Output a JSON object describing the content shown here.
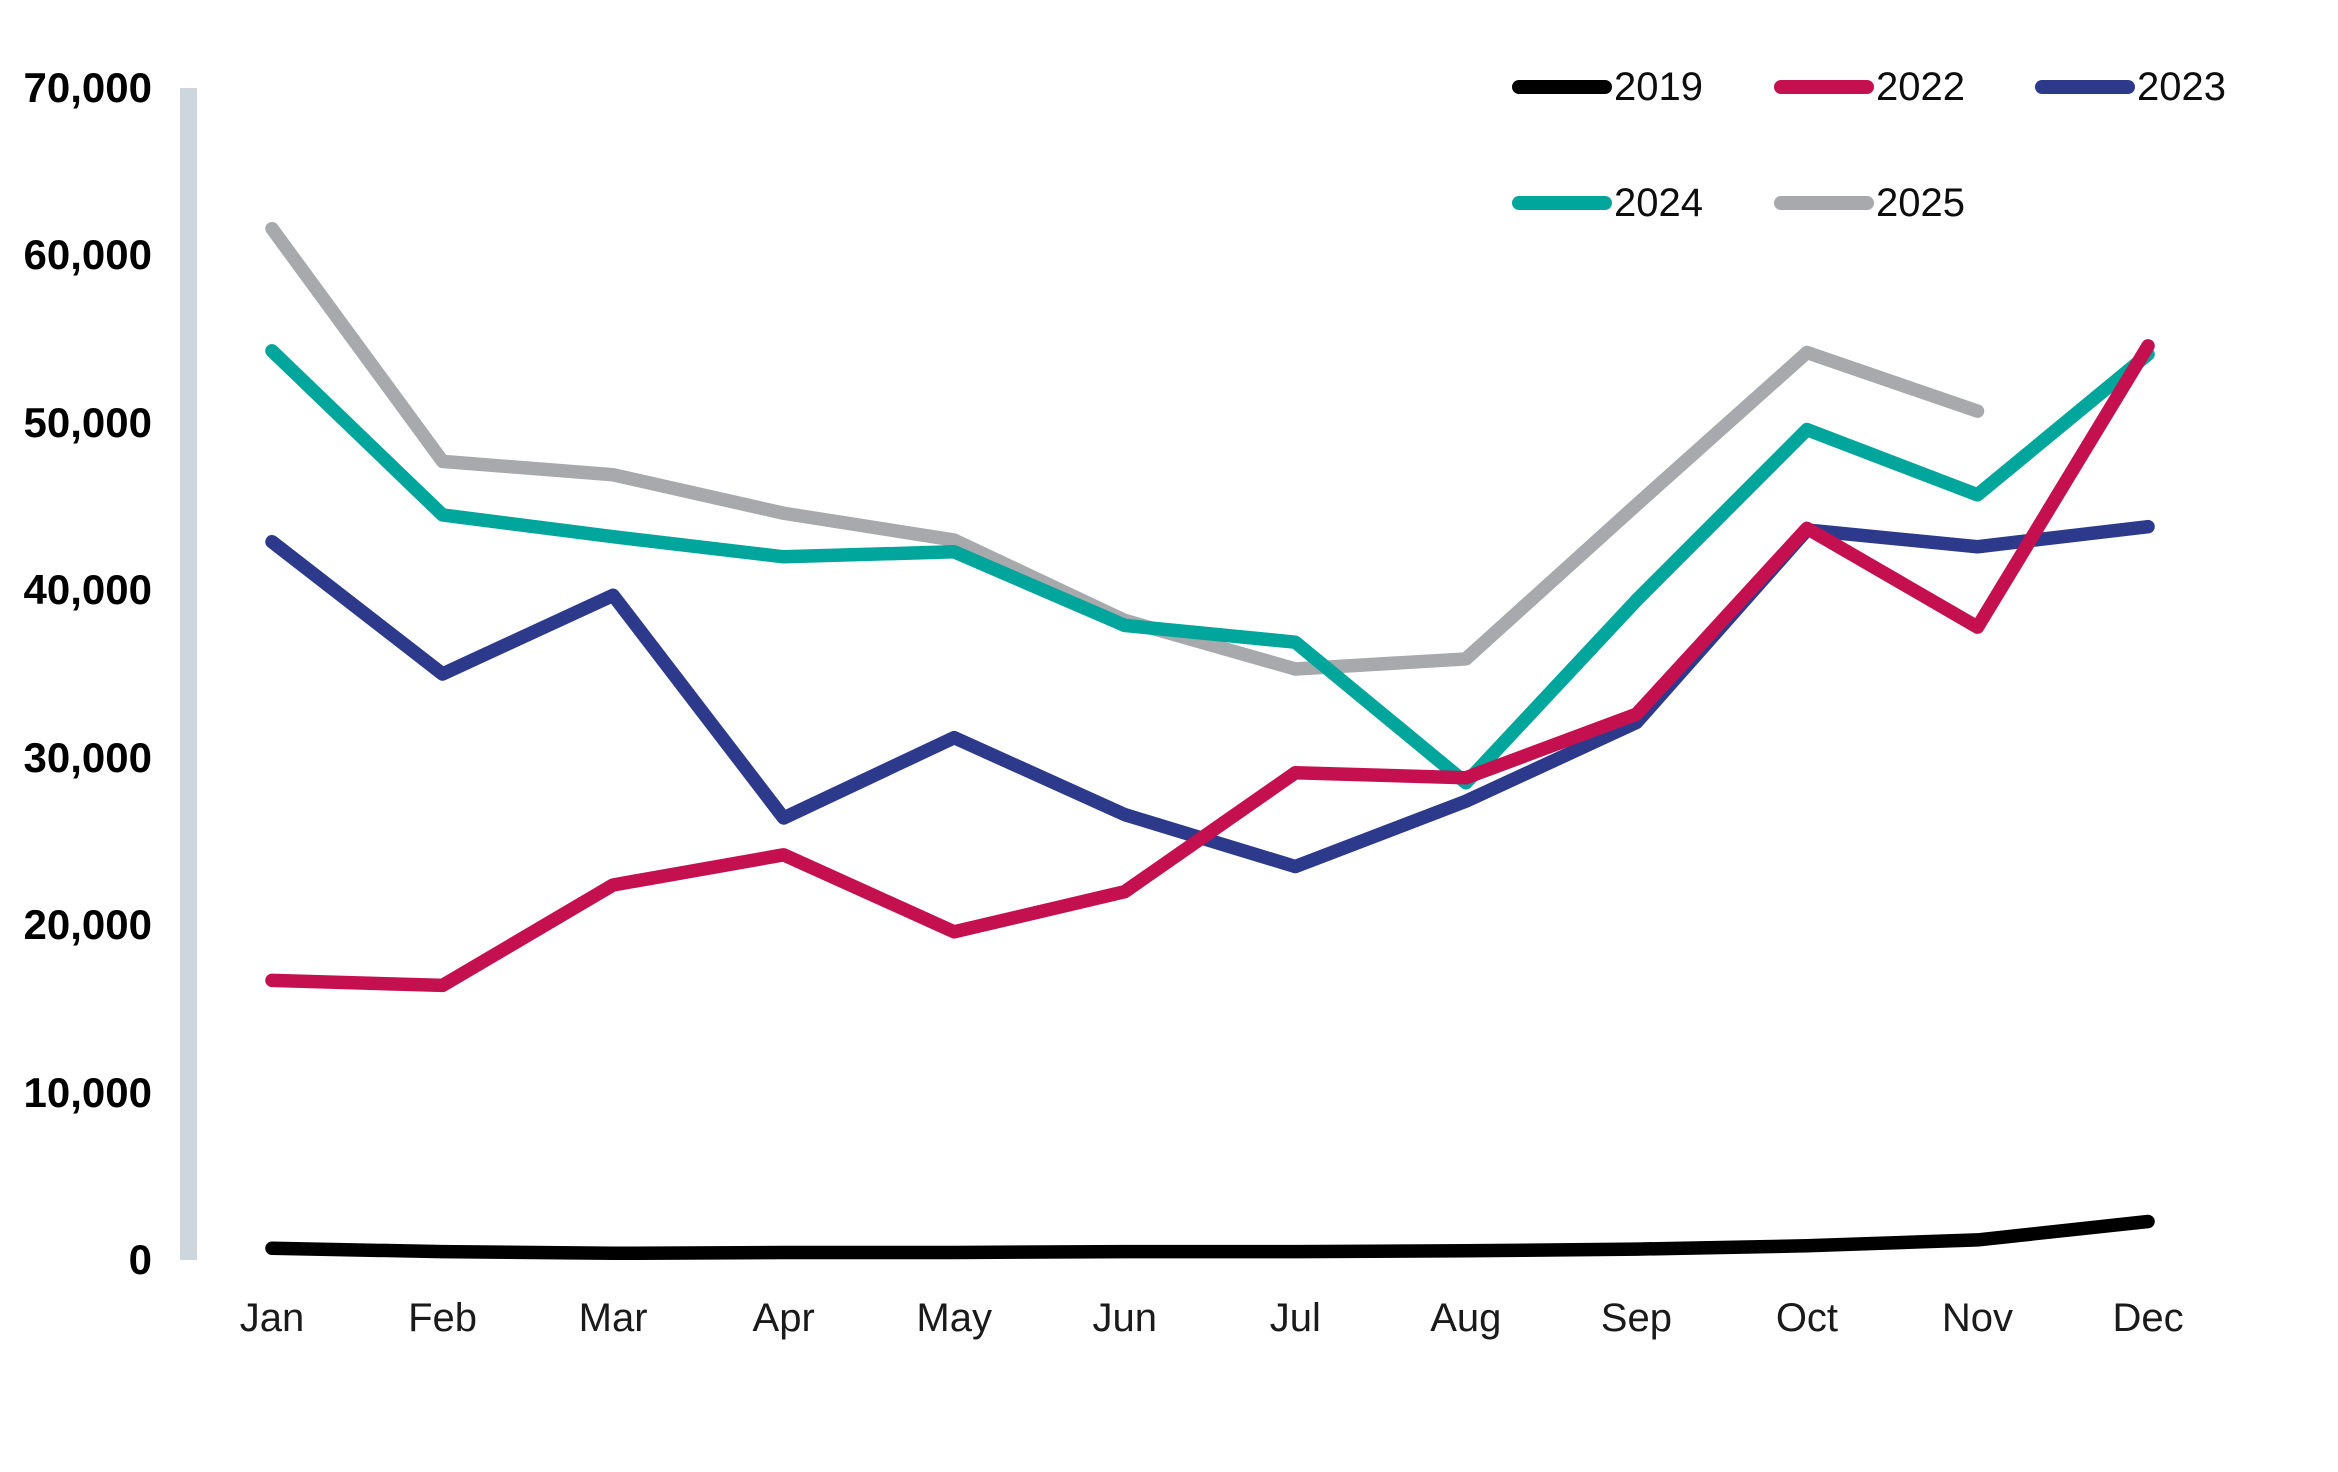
{
  "chart_data": {
    "type": "line",
    "title": "",
    "xlabel": "",
    "ylabel": "",
    "categories": [
      "Jan",
      "Feb",
      "Mar",
      "Apr",
      "May",
      "Jun",
      "Jul",
      "Aug",
      "Sep",
      "Oct",
      "Nov",
      "Dec"
    ],
    "y_axis": {
      "min": 0,
      "max": 70000,
      "tick_step": 10000,
      "ticks": [
        {
          "value": 0,
          "label": "0"
        },
        {
          "value": 10000,
          "label": "10,000"
        },
        {
          "value": 20000,
          "label": "20,000"
        },
        {
          "value": 30000,
          "label": "30,000"
        },
        {
          "value": 40000,
          "label": "40,000"
        },
        {
          "value": 50000,
          "label": "50,000"
        },
        {
          "value": 60000,
          "label": "60,000"
        },
        {
          "value": 70000,
          "label": "70,000"
        }
      ]
    },
    "grid": false,
    "legend_position": "top-right",
    "axis_bar_color": "#CDD6DC",
    "series": [
      {
        "name": "2019",
        "color": "#000000",
        "values": [
          700,
          500,
          400,
          450,
          450,
          500,
          500,
          550,
          650,
          850,
          1200,
          2300
        ]
      },
      {
        "name": "2022",
        "color": "#C5104F",
        "values": [
          16700,
          16400,
          22400,
          24200,
          19600,
          22000,
          29100,
          28800,
          32600,
          43700,
          37800,
          54600
        ]
      },
      {
        "name": "2023",
        "color": "#2D3A8B",
        "values": [
          42900,
          35000,
          39700,
          26400,
          31200,
          26600,
          23500,
          27400,
          32100,
          43600,
          42600,
          43800
        ]
      },
      {
        "name": "2024",
        "color": "#00A59B",
        "values": [
          54300,
          44500,
          43200,
          42000,
          42300,
          37900,
          36900,
          28500,
          39400,
          49600,
          45700,
          54100
        ]
      },
      {
        "name": "2025",
        "color": "#A7A9AC",
        "values": [
          61600,
          47700,
          46900,
          44600,
          43000,
          38200,
          35300,
          35900,
          45100,
          54200,
          50700,
          null
        ]
      }
    ]
  }
}
